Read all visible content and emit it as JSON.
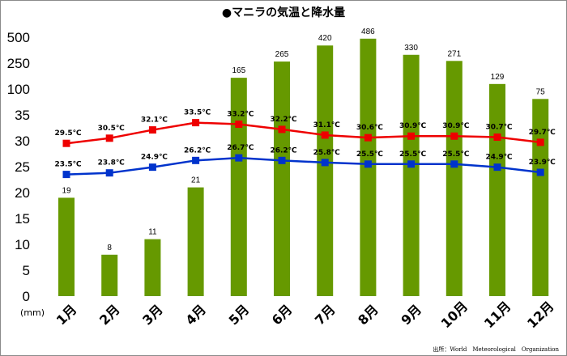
{
  "chart_data": {
    "type": "bar+line",
    "title": "●マニラの気温と降水量",
    "categories": [
      "1月",
      "2月",
      "3月",
      "4月",
      "5月",
      "6月",
      "7月",
      "8月",
      "9月",
      "10月",
      "11月",
      "12月"
    ],
    "y_ticks": [
      "0",
      "5",
      "10",
      "15",
      "20",
      "25",
      "30",
      "35",
      "100",
      "250",
      "500"
    ],
    "y_unit": "(mm)",
    "precipitation": {
      "values": [
        19,
        8,
        11,
        21,
        165,
        265,
        420,
        486,
        330,
        271,
        129,
        75
      ],
      "labels": [
        "19",
        "8",
        "11",
        "21",
        "165",
        "265",
        "420",
        "486",
        "330",
        "271",
        "129",
        "75"
      ],
      "color": "#669900"
    },
    "series": [
      {
        "values": [
          29.5,
          30.5,
          32.1,
          33.5,
          33.2,
          32.2,
          31.1,
          30.6,
          30.9,
          30.9,
          30.7,
          29.7
        ],
        "labels": [
          "29.5℃",
          "30.5℃",
          "32.1℃",
          "33.5℃",
          "33.2℃",
          "32.2℃",
          "31.1℃",
          "30.6℃",
          "30.9℃",
          "30.9℃",
          "30.7℃",
          "29.7℃"
        ],
        "color": "#ee0000"
      },
      {
        "values": [
          23.5,
          23.8,
          24.9,
          26.2,
          26.7,
          26.2,
          25.8,
          25.5,
          25.5,
          25.5,
          24.9,
          23.9
        ],
        "labels": [
          "23.5℃",
          "23.8℃",
          "24.9℃",
          "26.2℃",
          "26.7℃",
          "26.2℃",
          "25.8℃",
          "25.5℃",
          "25.5℃",
          "25.5℃",
          "24.9℃",
          "23.9℃"
        ],
        "color": "#0033cc"
      }
    ],
    "bar_color": "#669900",
    "grid": false,
    "source": "出所：World　Meteorological　Organization"
  }
}
